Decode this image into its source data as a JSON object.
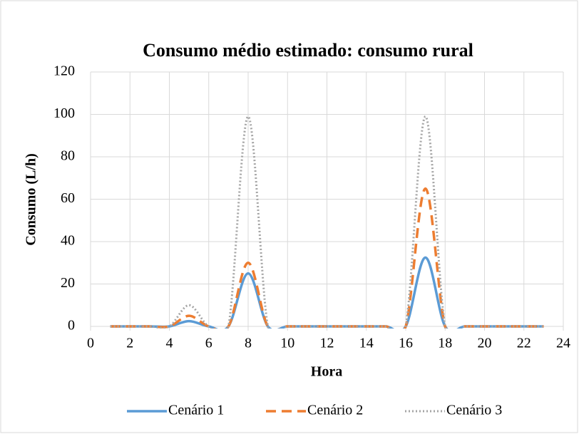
{
  "chart_data": {
    "type": "line",
    "title": "Consumo médio estimado: consumo rural",
    "x_label": "Hora",
    "y_label": "Consumo (L/h)",
    "x": [
      1,
      2,
      3,
      4,
      5,
      6,
      7,
      8,
      9,
      10,
      11,
      12,
      13,
      14,
      15,
      16,
      17,
      18,
      19,
      20,
      21,
      22,
      23
    ],
    "series": [
      {
        "name": "Cenário 1",
        "color": "#5b9bd5",
        "dash": "solid",
        "values": [
          0,
          0,
          0,
          0,
          2.5,
          0,
          0,
          25,
          0,
          0,
          0,
          0,
          0,
          0,
          0,
          0,
          32.5,
          0,
          0,
          0,
          0,
          0,
          0
        ]
      },
      {
        "name": "Cenário 2",
        "color": "#ed7d31",
        "dash": "dash",
        "values": [
          0,
          0,
          0,
          0,
          5,
          0,
          0,
          30,
          0,
          0,
          0,
          0,
          0,
          0,
          0,
          0,
          65,
          0,
          0,
          0,
          0,
          0,
          0
        ]
      },
      {
        "name": "Cenário 3",
        "color": "#a5a5a5",
        "dash": "dot",
        "values": [
          0,
          0,
          0,
          0,
          10,
          0,
          0,
          99,
          0,
          0,
          0,
          0,
          0,
          0,
          0,
          0,
          99,
          0,
          0,
          0,
          0,
          0,
          0
        ]
      }
    ],
    "xlim": [
      0,
      24
    ],
    "xticks": [
      0,
      2,
      4,
      6,
      8,
      10,
      12,
      14,
      16,
      18,
      20,
      22,
      24
    ],
    "ylim": [
      0,
      120
    ],
    "yticks": [
      0,
      20,
      40,
      60,
      80,
      100,
      120
    ],
    "grid": true,
    "smooth": true,
    "legend": "bottom"
  }
}
